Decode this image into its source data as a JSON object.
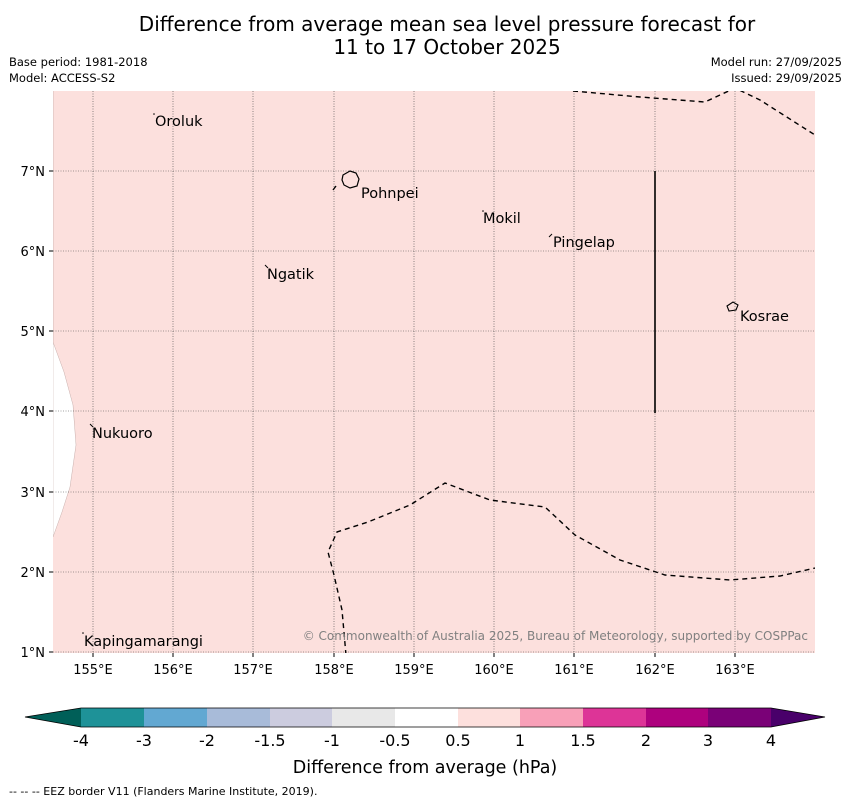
{
  "title_line1": "Difference from average mean sea level pressure forecast for",
  "title_line2": "11 to 17 October 2025",
  "base_period": "Base period: 1981-2018",
  "model": "Model: ACCESS-S2",
  "model_run": "Model run: 27/09/2025",
  "issued": "Issued: 29/09/2025",
  "lon_ticks": [
    "155°E",
    "156°E",
    "157°E",
    "158°E",
    "159°E",
    "160°E",
    "161°E",
    "162°E",
    "163°E"
  ],
  "lat_ticks": [
    "7°N",
    "6°N",
    "5°N",
    "4°N",
    "3°N",
    "2°N",
    "1°N"
  ],
  "places": {
    "oroluk": "Oroluk",
    "pohnpei": "Pohnpei",
    "mokil": "Mokil",
    "pingelap": "Pingelap",
    "ngatik": "Ngatik",
    "kosrae": "Kosrae",
    "nukuoro": "Nukuoro",
    "kapingamarangi": "Kapingamarangi"
  },
  "copyright": "© Commonwealth of Australia 2025, Bureau of Meteorology, supported by COSPPac",
  "colorbar": {
    "title": "Difference from average (hPa)",
    "ticks": [
      "-4",
      "-3",
      "-2",
      "-1.5",
      "-1",
      "-0.5",
      "0.5",
      "1",
      "1.5",
      "2",
      "3",
      "4"
    ],
    "colors": [
      "#005f58",
      "#1e9298",
      "#62a8d2",
      "#a8bbd9",
      "#ccccdf",
      "#e8e8e8",
      "#ffffff",
      "#fde0dd",
      "#f8a0b8",
      "#dd3497",
      "#ae017e",
      "#7a0177",
      "#49006a"
    ]
  },
  "map_colors": {
    "dominant_fill": "#fce0dd",
    "low_fill": "#ffffff"
  },
  "footer": "--  --  -- EEZ border V11 (Flanders Marine Institute, 2019)."
}
